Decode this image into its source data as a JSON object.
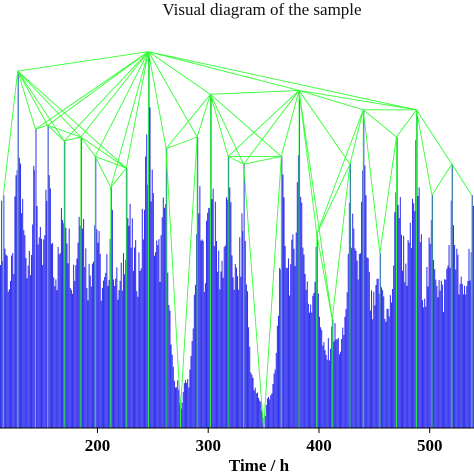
{
  "chart_data": {
    "type": "bar",
    "title": "Visual diagram of the sample",
    "xlabel": "Time / h",
    "ylabel": "",
    "xlim": [
      112,
      540
    ],
    "ylim": [
      0,
      100
    ],
    "x_ticks": [
      200,
      300,
      400,
      500
    ],
    "colors": {
      "bars": "#3333ee",
      "visibility_edges": "#33ff33"
    },
    "legend": "none",
    "grid": false,
    "peaks": [
      {
        "x": 115,
        "y": 60
      },
      {
        "x": 128,
        "y": 92
      },
      {
        "x": 144,
        "y": 77
      },
      {
        "x": 155,
        "y": 78
      },
      {
        "x": 170,
        "y": 74
      },
      {
        "x": 185,
        "y": 75
      },
      {
        "x": 198,
        "y": 70
      },
      {
        "x": 212,
        "y": 62
      },
      {
        "x": 226,
        "y": 67
      },
      {
        "x": 246,
        "y": 97
      },
      {
        "x": 262,
        "y": 72
      },
      {
        "x": 275,
        "y": 5
      },
      {
        "x": 290,
        "y": 75
      },
      {
        "x": 302,
        "y": 86
      },
      {
        "x": 318,
        "y": 70
      },
      {
        "x": 332,
        "y": 68
      },
      {
        "x": 350,
        "y": 0
      },
      {
        "x": 366,
        "y": 70
      },
      {
        "x": 382,
        "y": 87
      },
      {
        "x": 398,
        "y": 50
      },
      {
        "x": 412,
        "y": 28
      },
      {
        "x": 428,
        "y": 68
      },
      {
        "x": 440,
        "y": 82
      },
      {
        "x": 455,
        "y": 45
      },
      {
        "x": 470,
        "y": 75
      },
      {
        "x": 488,
        "y": 82
      },
      {
        "x": 502,
        "y": 60
      },
      {
        "x": 520,
        "y": 68
      },
      {
        "x": 538,
        "y": 60
      }
    ]
  }
}
